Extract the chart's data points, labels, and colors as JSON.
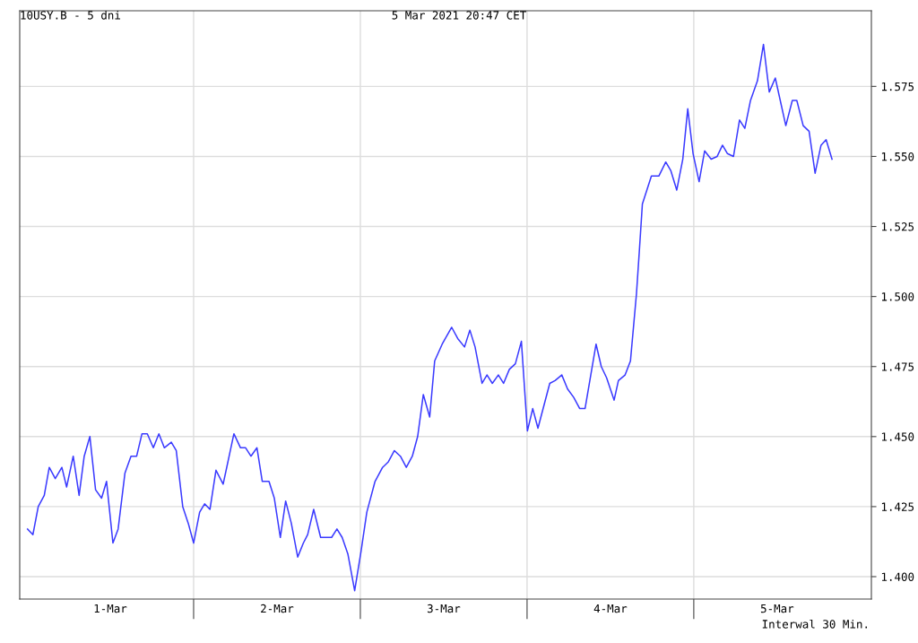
{
  "chart_data": {
    "type": "line",
    "title": "10USY.B - 5 dni",
    "subtitle": "5 Mar 2021 20:47 CET",
    "annotations": [
      "Interwal 30 Min."
    ],
    "x": [
      "2021-03-01T00:06",
      "2021-03-01T00:52",
      "2021-03-01T01:38",
      "2021-03-01T02:30",
      "2021-03-01T03:13",
      "2021-03-01T04:05",
      "2021-03-01T05:02",
      "2021-03-01T05:43",
      "2021-03-01T06:40",
      "2021-03-01T07:31",
      "2021-03-01T08:15",
      "2021-03-01T09:04",
      "2021-03-01T09:53",
      "2021-03-01T10:45",
      "2021-03-01T11:28",
      "2021-03-01T12:23",
      "2021-03-01T13:08",
      "2021-03-01T14:07",
      "2021-03-01T14:59",
      "2021-03-01T15:48",
      "2021-03-01T16:34",
      "2021-03-01T17:20",
      "2021-03-01T18:12",
      "2021-03-01T19:00",
      "2021-03-01T19:47",
      "2021-03-01T20:47",
      "2021-03-01T21:30",
      "2021-03-01T22:26",
      "2021-03-01T23:14",
      "2021-03-02T00:00",
      "2021-03-02T00:52",
      "2021-03-02T01:35",
      "2021-03-02T02:21",
      "2021-03-02T03:13",
      "2021-03-02T04:15",
      "2021-03-02T05:48",
      "2021-03-02T06:45",
      "2021-03-02T07:29",
      "2021-03-02T08:15",
      "2021-03-02T09:07",
      "2021-03-02T09:53",
      "2021-03-02T10:51",
      "2021-03-02T11:37",
      "2021-03-02T12:29",
      "2021-03-02T13:15",
      "2021-03-02T14:04",
      "2021-03-02T14:59",
      "2021-03-02T15:48",
      "2021-03-02T16:25",
      "2021-03-02T17:17",
      "2021-03-02T18:17",
      "2021-03-02T19:52",
      "2021-03-02T20:38",
      "2021-03-02T21:23",
      "2021-03-02T22:13",
      "2021-03-02T23:11",
      "2021-03-03T00:06",
      "2021-03-03T00:56",
      "2021-03-03T02:07",
      "2021-03-03T03:12",
      "2021-03-03T04:02",
      "2021-03-03T04:54",
      "2021-03-03T05:46",
      "2021-03-03T06:37",
      "2021-03-03T07:29",
      "2021-03-03T08:15",
      "2021-03-03T09:04",
      "2021-03-03T09:59",
      "2021-03-03T10:42",
      "2021-03-03T11:47",
      "2021-03-03T13:09",
      "2021-03-03T14:01",
      "2021-03-03T15:00",
      "2021-03-03T15:46",
      "2021-03-03T16:31",
      "2021-03-03T17:31",
      "2021-03-03T18:14",
      "2021-03-03T19:00",
      "2021-03-03T19:52",
      "2021-03-03T20:37",
      "2021-03-03T21:27",
      "2021-03-03T22:19",
      "2021-03-03T23:11",
      "2021-03-04T00:03",
      "2021-03-04T00:49",
      "2021-03-04T01:34",
      "2021-03-04T03:16",
      "2021-03-04T04:02",
      "2021-03-04T05:00",
      "2021-03-04T05:50",
      "2021-03-04T06:43",
      "2021-03-04T07:35",
      "2021-03-04T08:21",
      "2021-03-04T09:56",
      "2021-03-04T10:41",
      "2021-03-04T11:27",
      "2021-03-04T12:32",
      "2021-03-04T13:09",
      "2021-03-04T14:07",
      "2021-03-04T14:53",
      "2021-03-04T15:45",
      "2021-03-04T16:11",
      "2021-03-04T16:36",
      "2021-03-04T17:54",
      "2021-03-04T18:58",
      "2021-03-04T19:58",
      "2021-03-04T20:41",
      "2021-03-04T21:33",
      "2021-03-04T22:25",
      "2021-03-04T23:08",
      "2021-03-04T23:54",
      "2021-03-05T00:46",
      "2021-03-05T01:34",
      "2021-03-05T02:30",
      "2021-03-05T03:22",
      "2021-03-05T04:08",
      "2021-03-05T04:51",
      "2021-03-05T05:43",
      "2021-03-05T06:35",
      "2021-03-05T07:21",
      "2021-03-05T08:10",
      "2021-03-05T09:10",
      "2021-03-05T10:02",
      "2021-03-05T10:52",
      "2021-03-05T11:44",
      "2021-03-05T13:15",
      "2021-03-05T14:11",
      "2021-03-05T14:50",
      "2021-03-05T15:45",
      "2021-03-05T16:36",
      "2021-03-05T17:28",
      "2021-03-05T18:19",
      "2021-03-05T19:03",
      "2021-03-05T19:54"
    ],
    "series": [
      {
        "color": "#3a3aff",
        "values": [
          1.417,
          1.415,
          1.425,
          1.429,
          1.439,
          1.435,
          1.439,
          1.432,
          1.443,
          1.429,
          1.443,
          1.45,
          1.431,
          1.428,
          1.434,
          1.412,
          1.417,
          1.437,
          1.443,
          1.443,
          1.451,
          1.451,
          1.446,
          1.451,
          1.446,
          1.448,
          1.445,
          1.425,
          1.419,
          1.412,
          1.423,
          1.426,
          1.424,
          1.438,
          1.433,
          1.451,
          1.446,
          1.446,
          1.443,
          1.446,
          1.434,
          1.434,
          1.428,
          1.414,
          1.427,
          1.419,
          1.407,
          1.412,
          1.415,
          1.424,
          1.414,
          1.414,
          1.417,
          1.414,
          1.408,
          1.395,
          1.409,
          1.423,
          1.434,
          1.439,
          1.441,
          1.445,
          1.443,
          1.439,
          1.443,
          1.45,
          1.465,
          1.457,
          1.477,
          1.483,
          1.489,
          1.485,
          1.482,
          1.488,
          1.482,
          1.469,
          1.472,
          1.469,
          1.472,
          1.469,
          1.474,
          1.476,
          1.484,
          1.452,
          1.46,
          1.453,
          1.469,
          1.47,
          1.472,
          1.467,
          1.464,
          1.46,
          1.46,
          1.483,
          1.475,
          1.471,
          1.463,
          1.47,
          1.472,
          1.477,
          1.501,
          1.517,
          1.533,
          1.543,
          1.543,
          1.548,
          1.545,
          1.538,
          1.549,
          1.567,
          1.551,
          1.541,
          1.552,
          1.549,
          1.55,
          1.554,
          1.551,
          1.55,
          1.563,
          1.56,
          1.57,
          1.577,
          1.59,
          1.573,
          1.578,
          1.561,
          1.57,
          1.57,
          1.561,
          1.559,
          1.544,
          1.554,
          1.556,
          1.549
        ]
      }
    ],
    "xlim": [
      "2021-02-28T22:58",
      "2021-03-06T01:34"
    ],
    "xticks": [
      {
        "value": "2021-03-01T12:00",
        "label": "1-Mar"
      },
      {
        "value": "2021-03-02T00:00",
        "label": null
      },
      {
        "value": "2021-03-02T12:00",
        "label": "2-Mar"
      },
      {
        "value": "2021-03-03T00:00",
        "label": null
      },
      {
        "value": "2021-03-03T12:00",
        "label": "3-Mar"
      },
      {
        "value": "2021-03-04T00:00",
        "label": null
      },
      {
        "value": "2021-03-04T12:00",
        "label": "4-Mar"
      },
      {
        "value": "2021-03-05T00:00",
        "label": null
      },
      {
        "value": "2021-03-05T12:00",
        "label": "5-Mar"
      }
    ],
    "ylim": [
      1.392,
      1.602
    ],
    "yticks": [
      {
        "value": 1.4,
        "label": "1.400"
      },
      {
        "value": 1.425,
        "label": "1.425"
      },
      {
        "value": 1.45,
        "label": "1.450"
      },
      {
        "value": 1.475,
        "label": "1.475"
      },
      {
        "value": 1.5,
        "label": "1.500"
      },
      {
        "value": 1.525,
        "label": "1.525"
      },
      {
        "value": 1.55,
        "label": "1.550"
      },
      {
        "value": 1.575,
        "label": "1.575"
      }
    ],
    "grid": true,
    "legend": false,
    "marker": "none",
    "line_style": "solid"
  }
}
